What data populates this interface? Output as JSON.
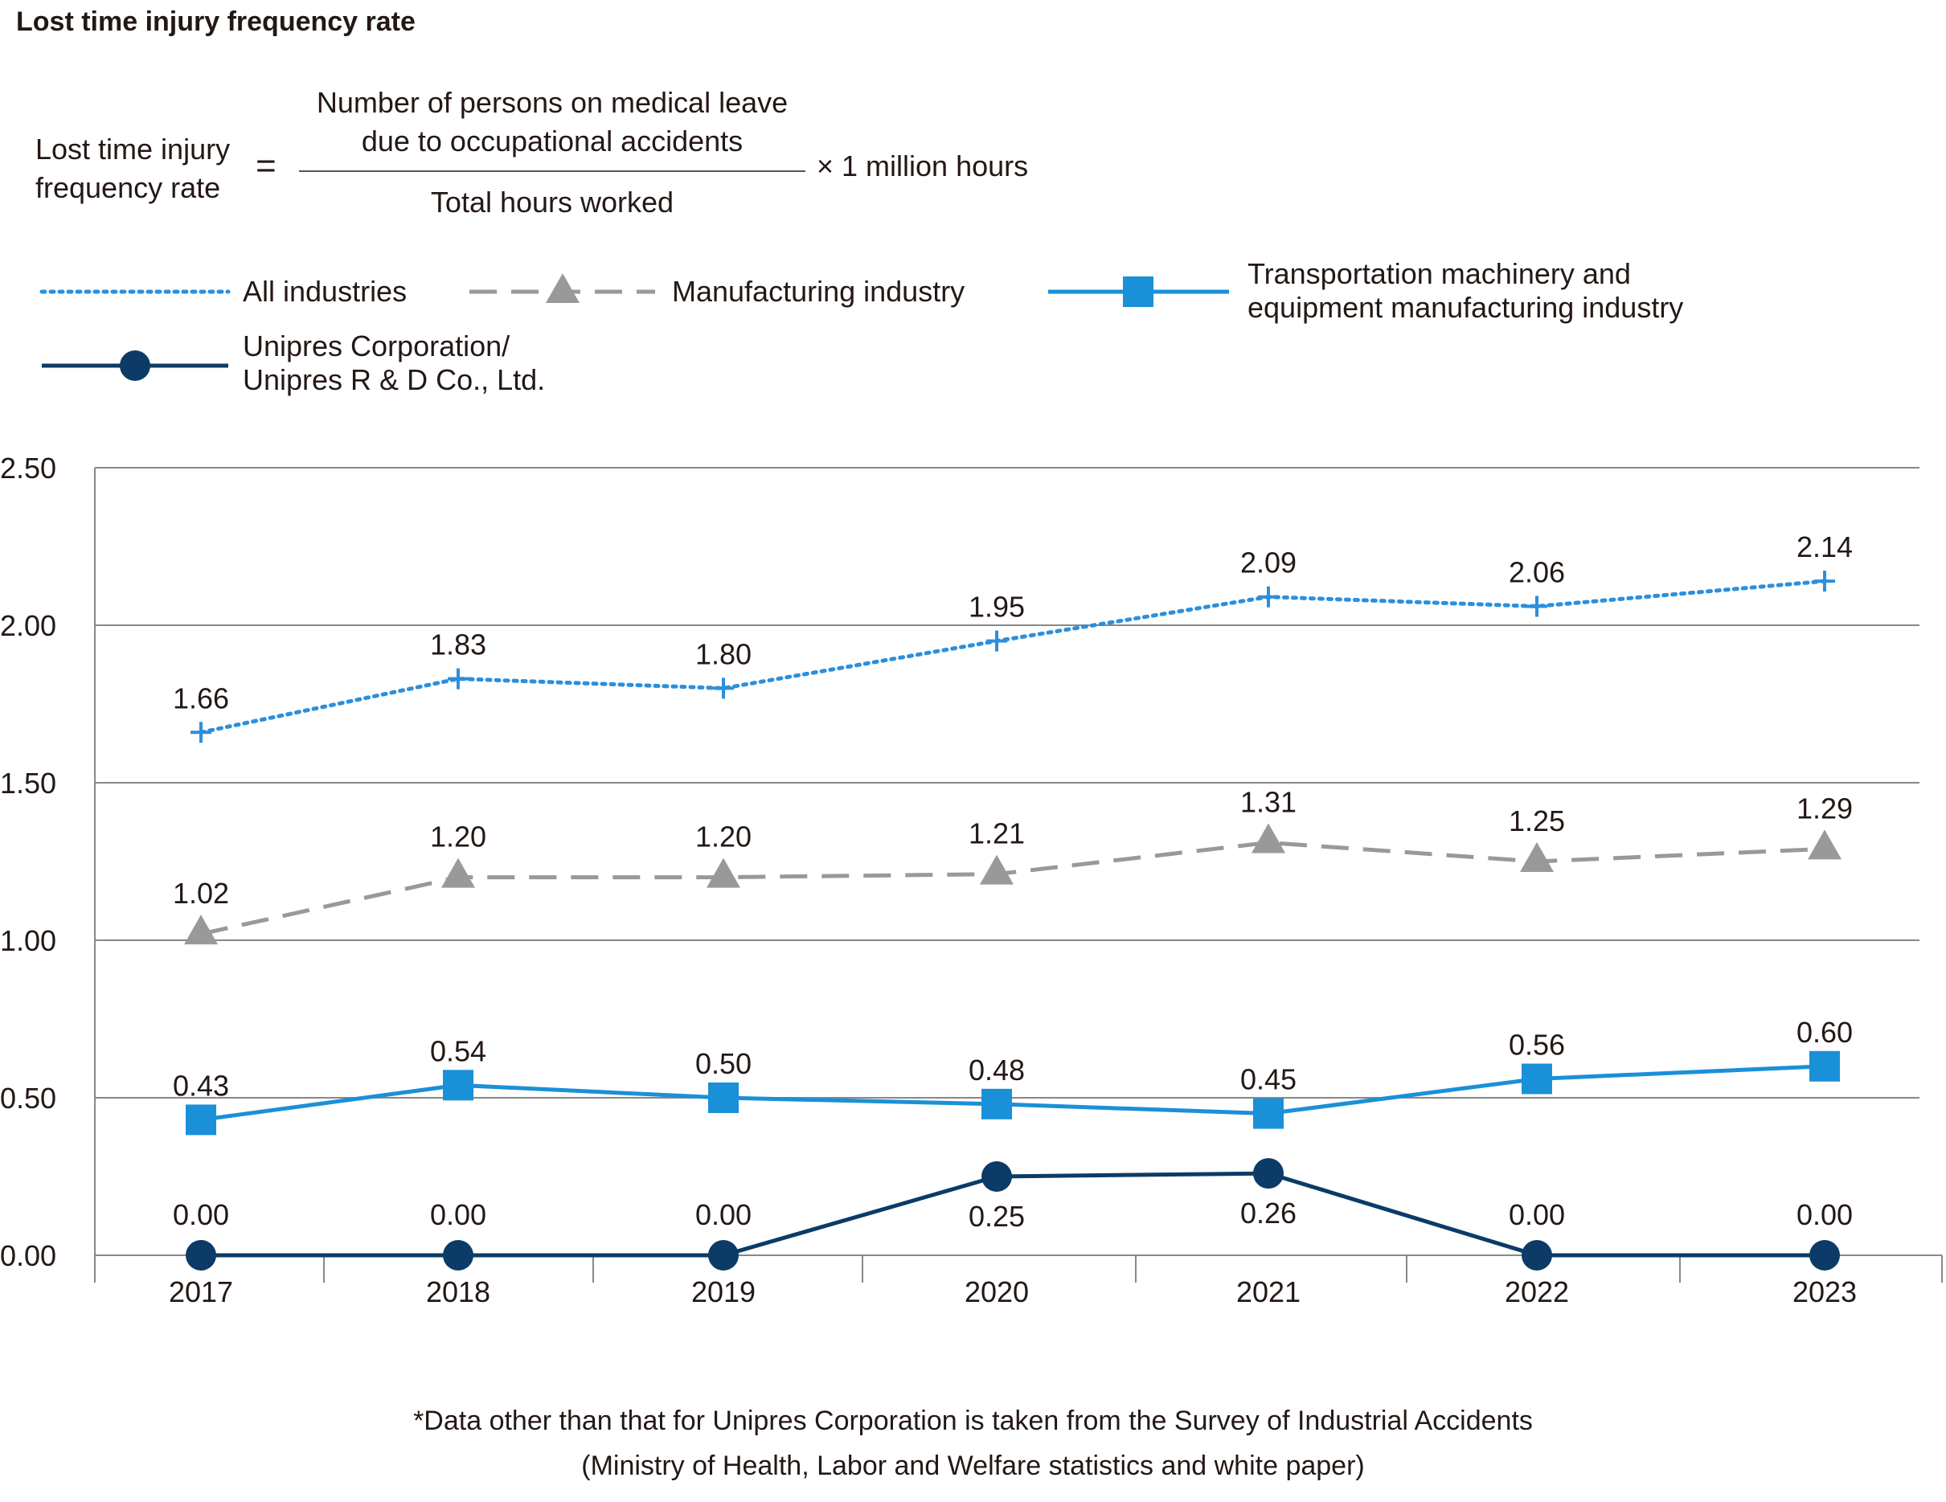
{
  "page_title": "Lost time injury frequency rate",
  "formula": {
    "left_line1": "Lost time injury",
    "left_line2": "frequency rate",
    "equals": "=",
    "numerator_line1": "Number of persons on medical leave",
    "numerator_line2": "due to occupational accidents",
    "denominator": "Total hours worked",
    "multiplier": "× 1 million hours"
  },
  "legend": {
    "all_industries": "All industries",
    "manufacturing": "Manufacturing industry",
    "transport_line1": "Transportation machinery and",
    "transport_line2": "equipment manufacturing industry",
    "unipres_line1": "Unipres Corporation/",
    "unipres_line2": "Unipres R & D Co., Ltd."
  },
  "footnote": {
    "line1": "*Data other than that for Unipres Corporation is taken from the Survey of Industrial Accidents",
    "line2": "(Ministry of Health, Labor and Welfare statistics and white paper)"
  },
  "colors": {
    "all_industries": "#2c8fdb",
    "manufacturing": "#999999",
    "transport": "#1a90d8",
    "unipres": "#0b3b66",
    "grid": "#888888"
  },
  "chart_data": {
    "type": "line",
    "categories": [
      "2017",
      "2018",
      "2019",
      "2020",
      "2021",
      "2022",
      "2023"
    ],
    "ylim": [
      0,
      2.5
    ],
    "yticks": [
      "0.00",
      "0.50",
      "1.00",
      "1.50",
      "2.00",
      "2.50"
    ],
    "grid": true,
    "series": [
      {
        "name": "All industries",
        "values": [
          1.66,
          1.83,
          1.8,
          1.95,
          2.09,
          2.06,
          2.14
        ],
        "labels": [
          "1.66",
          "1.83",
          "1.80",
          "1.95",
          "2.09",
          "2.06",
          "2.14"
        ],
        "marker": "plus",
        "line": "dotted"
      },
      {
        "name": "Manufacturing industry",
        "values": [
          1.02,
          1.2,
          1.2,
          1.21,
          1.31,
          1.25,
          1.29
        ],
        "labels": [
          "1.02",
          "1.20",
          "1.20",
          "1.21",
          "1.31",
          "1.25",
          "1.29"
        ],
        "marker": "triangle",
        "line": "dashed"
      },
      {
        "name": "Transportation machinery and equipment manufacturing industry",
        "values": [
          0.43,
          0.54,
          0.5,
          0.48,
          0.45,
          0.56,
          0.6
        ],
        "labels": [
          "0.43",
          "0.54",
          "0.50",
          "0.48",
          "0.45",
          "0.56",
          "0.60"
        ],
        "marker": "square",
        "line": "solid"
      },
      {
        "name": "Unipres Corporation/ Unipres R & D Co., Ltd.",
        "values": [
          0.0,
          0.0,
          0.0,
          0.25,
          0.26,
          0.0,
          0.0
        ],
        "labels": [
          "0.00",
          "0.00",
          "0.00",
          "0.25",
          "0.26",
          "0.00",
          "0.00"
        ],
        "marker": "circle",
        "line": "solid"
      }
    ]
  }
}
